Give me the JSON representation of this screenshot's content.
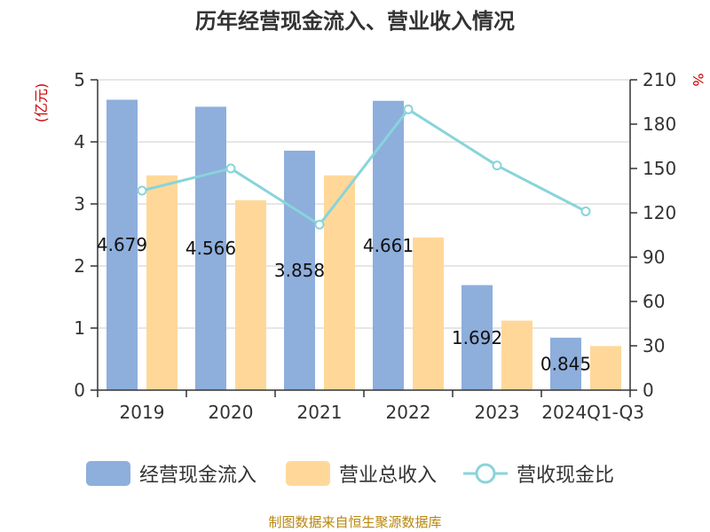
{
  "colors": {
    "bar1": "#8eaedc",
    "bar2": "#ffd899",
    "line": "#88d4da",
    "grid": "#cccccc",
    "axis": "#333333",
    "unit": "#cc0000",
    "source": "#b8860b"
  },
  "chart_data": {
    "type": "bar",
    "title": "历年经营现金流入、营业收入情况",
    "categories": [
      "2019",
      "2020",
      "2021",
      "2022",
      "2023",
      "2024Q1-Q3"
    ],
    "series": [
      {
        "name": "经营现金流入",
        "axis": "left",
        "kind": "bar",
        "values": [
          4.679,
          4.566,
          3.858,
          4.661,
          1.692,
          0.845
        ],
        "labels": [
          "4.679",
          "4.566",
          "3.858",
          "4.661",
          "1.692",
          "0.845"
        ]
      },
      {
        "name": "营业总收入",
        "axis": "left",
        "kind": "bar",
        "values": [
          3.46,
          3.06,
          3.46,
          2.46,
          1.12,
          0.71
        ]
      },
      {
        "name": "营收现金比",
        "axis": "right",
        "kind": "line",
        "values": [
          135,
          150,
          112,
          190,
          152,
          121
        ]
      }
    ],
    "left_axis": {
      "unit_label": "(亿元)",
      "ylim": [
        0,
        5
      ],
      "ticks": [
        "0",
        "1",
        "2",
        "3",
        "4",
        "5"
      ]
    },
    "right_axis": {
      "unit_label": "%",
      "ylim": [
        0,
        210
      ],
      "ticks": [
        "0",
        "30",
        "60",
        "90",
        "120",
        "150",
        "180",
        "210"
      ]
    },
    "grid": true,
    "legend_position": "bottom"
  },
  "source_text": "制图数据来自恒生聚源数据库"
}
